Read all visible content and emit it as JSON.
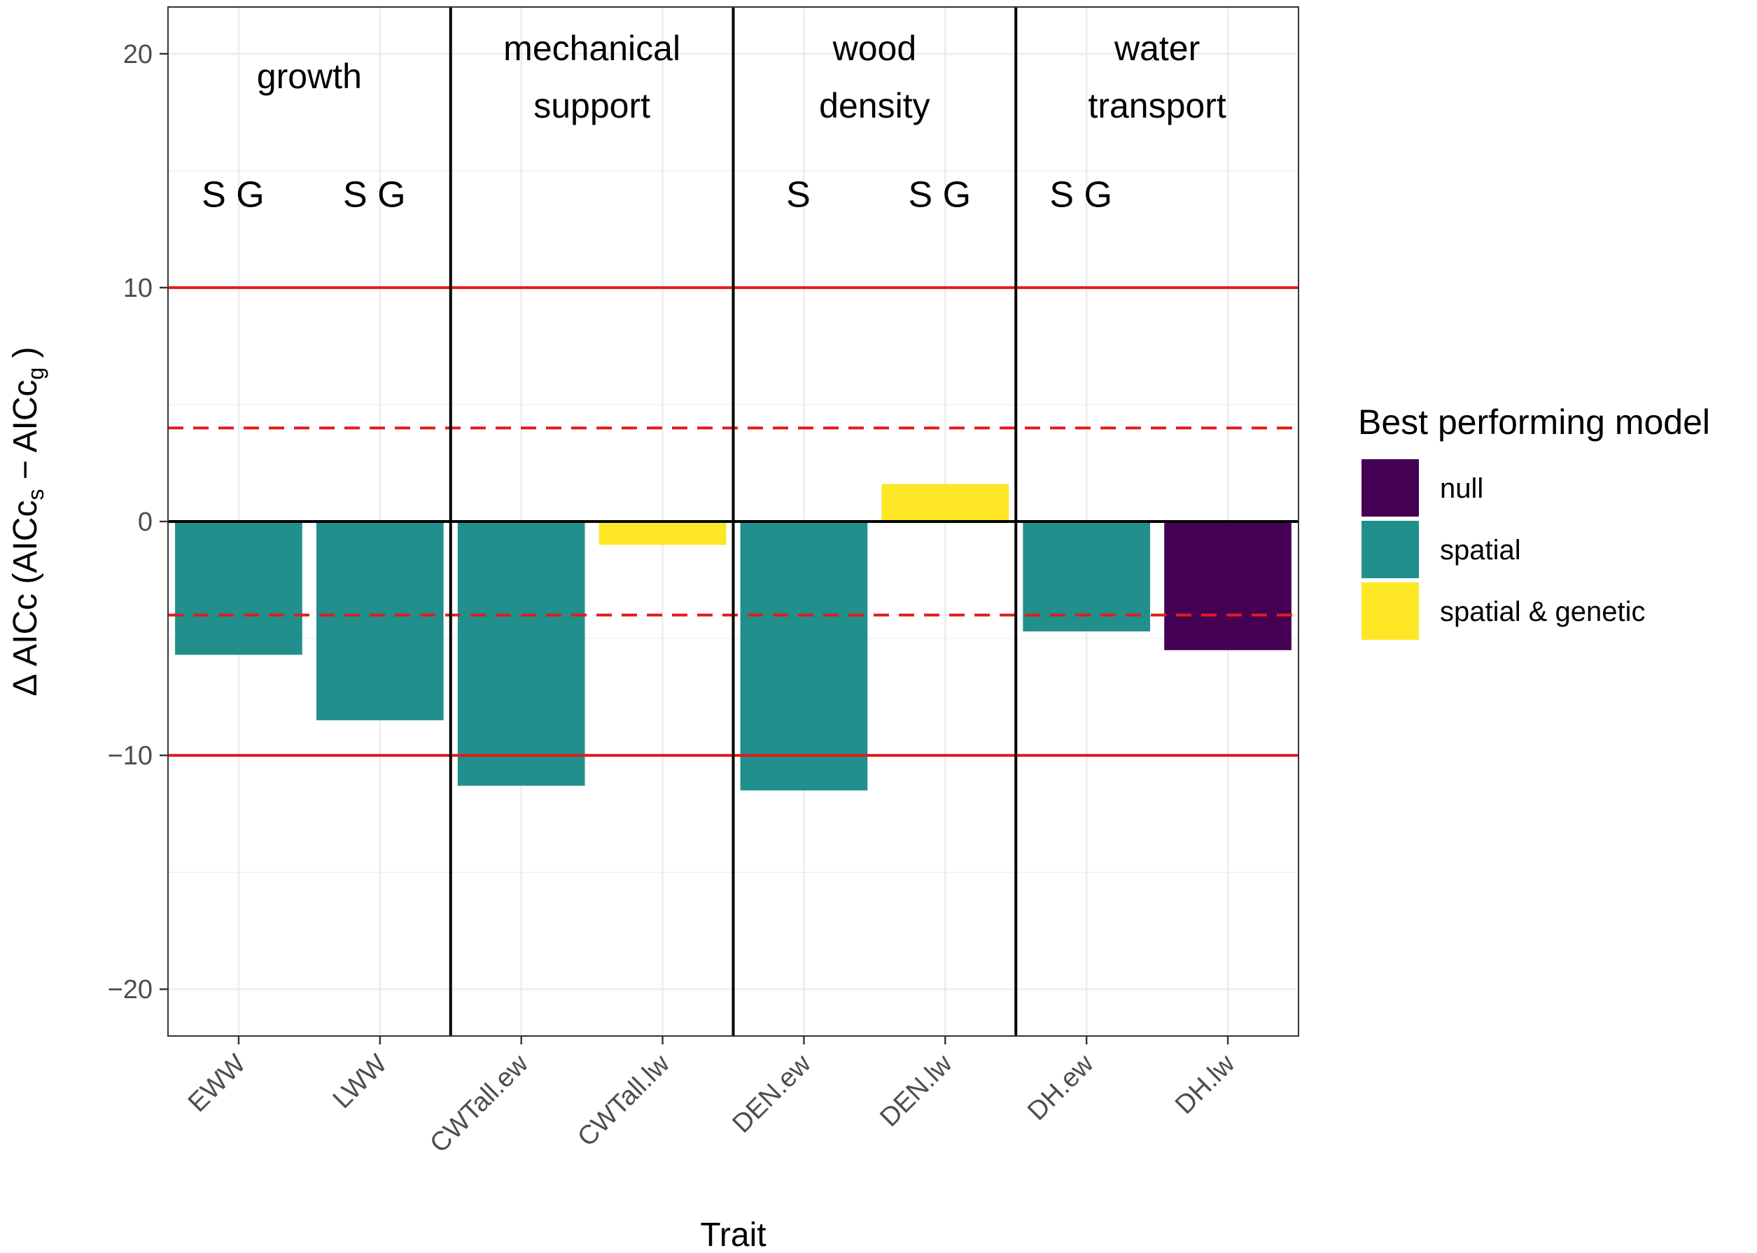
{
  "chart_data": {
    "type": "bar",
    "xlabel": "Trait",
    "ylabel": {
      "prefix": "Δ AICc (AICc",
      "sub_s": "s",
      "minus": " − AICc",
      "sub_g": "g",
      "suffix": " )"
    },
    "ylim": [
      -22,
      22
    ],
    "yticks": [
      20,
      10,
      0,
      -10,
      -20
    ],
    "ytick_labels": [
      "20",
      "10",
      "0",
      "−10",
      "−20"
    ],
    "categories": [
      "EWW",
      "LWW",
      "CWTall.ew",
      "CWTall.lw",
      "DEN.ew",
      "DEN.lw",
      "DH.ew",
      "DH.lw"
    ],
    "values": [
      -5.7,
      -8.5,
      -11.3,
      -1.0,
      -11.5,
      1.6,
      -4.7,
      -5.5
    ],
    "best_model": [
      "spatial",
      "spatial",
      "spatial",
      "spatial & genetic",
      "spatial",
      "spatial & genetic",
      "spatial",
      "null"
    ],
    "significance": [
      "S G",
      "S G",
      "",
      "",
      "S",
      "S G",
      "S G",
      ""
    ],
    "significance_y": 14,
    "groups": [
      {
        "label": [
          "growth"
        ],
        "start": 0,
        "end": 1
      },
      {
        "label": [
          "mechanical",
          "support"
        ],
        "start": 2,
        "end": 3
      },
      {
        "label": [
          "wood",
          "density"
        ],
        "start": 4,
        "end": 5
      },
      {
        "label": [
          "water",
          "transport"
        ],
        "start": 6,
        "end": 7
      }
    ],
    "reference_lines": [
      {
        "y": 10,
        "style": "solid",
        "color": "#e31a1c"
      },
      {
        "y": -10,
        "style": "solid",
        "color": "#e31a1c"
      },
      {
        "y": 4,
        "style": "dashed",
        "color": "#e31a1c"
      },
      {
        "y": -4,
        "style": "dashed",
        "color": "#e31a1c"
      },
      {
        "y": 0,
        "style": "solid",
        "color": "#000000"
      }
    ],
    "legend": {
      "title": "Best performing model",
      "position": "right",
      "items": [
        {
          "label": "null",
          "color": "#440154"
        },
        {
          "label": "spatial",
          "color": "#21908c"
        },
        {
          "label": "spatial & genetic",
          "color": "#fde725"
        }
      ]
    }
  }
}
